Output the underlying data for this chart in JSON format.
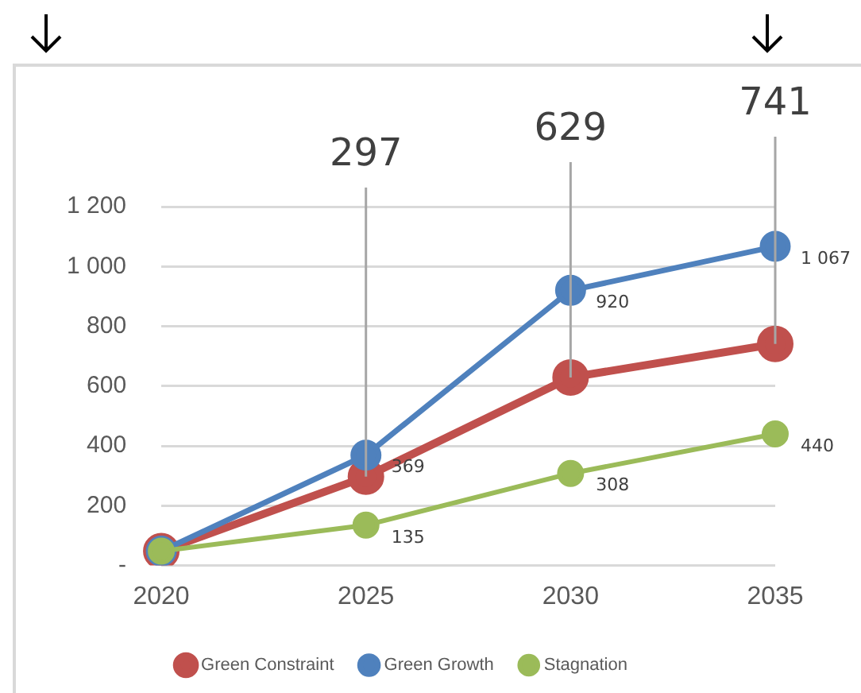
{
  "chart_data": {
    "type": "line",
    "categories": [
      "2020",
      "2025",
      "2030",
      "2035"
    ],
    "series": [
      {
        "name": "Green Constraint",
        "color": "#c0504d",
        "values": [
          48,
          297,
          629,
          741
        ],
        "value_labels": [
          null,
          "297",
          "629",
          "741"
        ]
      },
      {
        "name": "Green Growth",
        "color": "#4f81bd",
        "values": [
          48,
          369,
          920,
          1067
        ],
        "value_labels": [
          null,
          "369",
          "920",
          "1 067"
        ]
      },
      {
        "name": "Stagnation",
        "color": "#9bbb59",
        "values": [
          48,
          135,
          308,
          440
        ],
        "value_labels": [
          null,
          "135",
          "308",
          "440"
        ]
      }
    ],
    "ylim": [
      0,
      1200
    ],
    "yticks": [
      {
        "value": 0,
        "label": "-"
      },
      200,
      400,
      600,
      800,
      {
        "value": 1000,
        "label": "1 000"
      },
      {
        "value": 1200,
        "label": "1 200"
      }
    ],
    "grid": "y",
    "legend": "bottom",
    "marker": "circle",
    "line_style": "solid"
  }
}
